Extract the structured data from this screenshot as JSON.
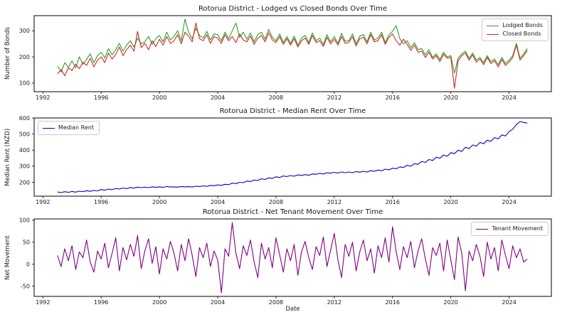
{
  "colors": {
    "background": "#ffffff",
    "spine": "#000000",
    "text": "#1a1a1a",
    "legend_border": "#cccccc"
  },
  "x_axis": {
    "range": [
      1991.4,
      2026.9
    ],
    "ticks": [
      "1992",
      "1996",
      "2000",
      "2004",
      "2008",
      "2012",
      "2016",
      "2020",
      "2024"
    ],
    "tick_values": [
      1992,
      1996,
      2000,
      2004,
      2008,
      2012,
      2016,
      2020,
      2024
    ]
  },
  "chart_data": [
    {
      "type": "line",
      "title": "Rotorua District - Lodged vs Closed Bonds Over Time",
      "xlabel": "",
      "ylabel": "Number of Bonds",
      "ylim": [
        67,
        358
      ],
      "yticks": [
        100,
        200,
        300
      ],
      "legend_position": "upper-right",
      "grid": false,
      "x_start": 1993.0,
      "x_step": 0.25,
      "series": [
        {
          "name": "Lodged Bonds",
          "color": "#2ca02c",
          "values": [
            165,
            142,
            178,
            160,
            185,
            158,
            200,
            172,
            190,
            212,
            178,
            205,
            218,
            196,
            232,
            208,
            228,
            252,
            222,
            245,
            262,
            238,
            272,
            250,
            258,
            278,
            248,
            270,
            282,
            258,
            295,
            265,
            278,
            300,
            262,
            345,
            295,
            270,
            310,
            282,
            272,
            298,
            265,
            288,
            285,
            262,
            295,
            270,
            300,
            330,
            275,
            295,
            268,
            292,
            258,
            285,
            295,
            268,
            305,
            275,
            262,
            288,
            255,
            278,
            252,
            280,
            245,
            272,
            282,
            255,
            292,
            262,
            272,
            248,
            285,
            258,
            278,
            252,
            290,
            260,
            262,
            288,
            250,
            280,
            285,
            258,
            295,
            265,
            272,
            295,
            255,
            285,
            298,
            320,
            270,
            250,
            262,
            235,
            255,
            228,
            232,
            208,
            228,
            198,
            212,
            190,
            218,
            200,
            205,
            138,
            195,
            212,
            222,
            195,
            215,
            188,
            198,
            178,
            205,
            182,
            192,
            170,
            198,
            175,
            188,
            205,
            252,
            195,
            212,
            232
          ]
        },
        {
          "name": "Closed Bonds",
          "color": "#d62728",
          "values": [
            135,
            152,
            128,
            158,
            148,
            172,
            155,
            180,
            168,
            195,
            162,
            188,
            200,
            178,
            215,
            192,
            210,
            238,
            205,
            228,
            245,
            222,
            298,
            235,
            252,
            228,
            262,
            240,
            268,
            245,
            278,
            252,
            262,
            285,
            250,
            295,
            280,
            258,
            330,
            270,
            262,
            285,
            252,
            278,
            272,
            252,
            285,
            262,
            278,
            255,
            288,
            265,
            258,
            280,
            248,
            272,
            282,
            258,
            292,
            265,
            255,
            278,
            248,
            270,
            245,
            270,
            238,
            262,
            272,
            248,
            282,
            255,
            262,
            240,
            275,
            250,
            268,
            245,
            278,
            252,
            255,
            278,
            242,
            270,
            275,
            250,
            285,
            258,
            262,
            285,
            248,
            275,
            288,
            262,
            245,
            268,
            248,
            225,
            245,
            218,
            222,
            198,
            218,
            192,
            205,
            182,
            210,
            195,
            198,
            80,
            185,
            205,
            215,
            188,
            208,
            180,
            192,
            170,
            198,
            175,
            185,
            162,
            190,
            168,
            180,
            198,
            245,
            188,
            205,
            225
          ]
        }
      ]
    },
    {
      "type": "line",
      "title": "Rotorua District - Median Rent Over Time",
      "xlabel": "",
      "ylabel": "Median Rent (NZD)",
      "ylim": [
        114,
        600
      ],
      "yticks": [
        200,
        300,
        400,
        500,
        600
      ],
      "legend_position": "upper-left",
      "grid": false,
      "x_start": 1993.0,
      "x_step": 0.25,
      "series": [
        {
          "name": "Median Rent",
          "color": "#0000cd",
          "values": [
            140,
            136,
            142,
            138,
            143,
            139,
            145,
            142,
            148,
            144,
            150,
            147,
            155,
            151,
            158,
            154,
            162,
            158,
            165,
            161,
            168,
            164,
            170,
            167,
            170,
            167,
            172,
            169,
            172,
            169,
            174,
            171,
            172,
            170,
            174,
            172,
            173,
            171,
            176,
            174,
            178,
            175,
            181,
            179,
            184,
            181,
            188,
            186,
            195,
            192,
            200,
            198,
            208,
            205,
            214,
            212,
            222,
            218,
            228,
            225,
            234,
            230,
            240,
            236,
            242,
            238,
            246,
            243,
            248,
            244,
            252,
            250,
            256,
            252,
            260,
            257,
            262,
            258,
            264,
            260,
            264,
            260,
            267,
            263,
            268,
            264,
            272,
            269,
            276,
            272,
            282,
            278,
            288,
            284,
            296,
            292,
            306,
            300,
            316,
            312,
            330,
            324,
            342,
            336,
            356,
            350,
            370,
            362,
            385,
            378,
            400,
            392,
            418,
            410,
            432,
            425,
            448,
            440,
            462,
            455,
            478,
            470,
            495,
            488,
            515,
            530,
            560,
            578,
            572,
            568
          ]
        }
      ]
    },
    {
      "type": "line",
      "title": "Rotorua District - Net Tenant Movement Over Time",
      "xlabel": "Date",
      "ylabel": "Net Movement",
      "ylim": [
        -73,
        103
      ],
      "yticks": [
        -50,
        0,
        50,
        100
      ],
      "legend_position": "upper-right",
      "grid": false,
      "x_start": 1993.0,
      "x_step": 0.25,
      "series": [
        {
          "name": "Tenant Movement",
          "color": "#800080",
          "values": [
            20,
            -5,
            35,
            8,
            42,
            -12,
            28,
            15,
            55,
            5,
            -18,
            30,
            12,
            48,
            -8,
            25,
            60,
            -15,
            38,
            10,
            45,
            18,
            65,
            -10,
            30,
            58,
            2,
            40,
            -22,
            35,
            12,
            52,
            25,
            -15,
            45,
            8,
            58,
            20,
            -28,
            38,
            15,
            48,
            -5,
            30,
            10,
            -65,
            35,
            18,
            95,
            25,
            -10,
            42,
            20,
            55,
            5,
            -30,
            48,
            12,
            38,
            -8,
            60,
            22,
            -18,
            35,
            8,
            45,
            -25,
            28,
            52,
            15,
            -12,
            40,
            20,
            62,
            -5,
            32,
            70,
            10,
            -30,
            45,
            18,
            50,
            -15,
            28,
            55,
            8,
            35,
            -20,
            42,
            15,
            60,
            5,
            85,
            28,
            -12,
            40,
            15,
            52,
            -8,
            30,
            58,
            12,
            -25,
            38,
            20,
            48,
            -15,
            55,
            10,
            -35,
            62,
            25,
            -60,
            30,
            8,
            45,
            18,
            -28,
            50,
            12,
            38,
            -15,
            55,
            20,
            -10,
            42,
            15,
            35,
            5,
            12
          ]
        }
      ]
    }
  ]
}
